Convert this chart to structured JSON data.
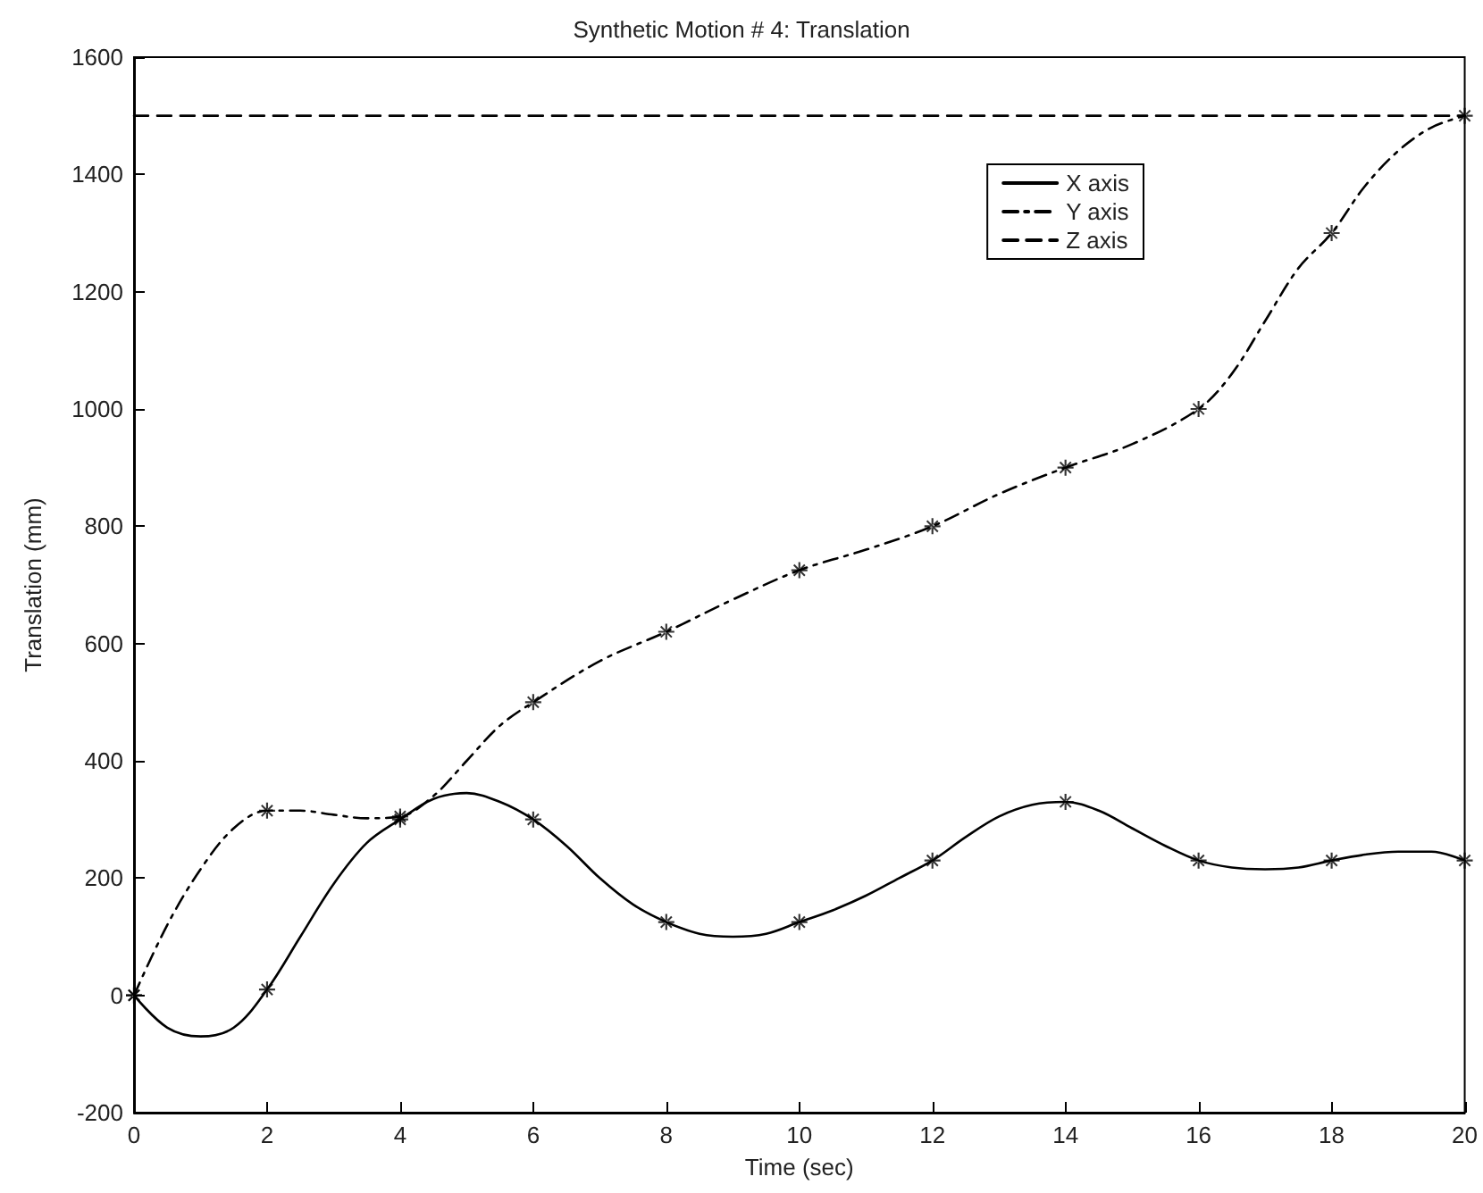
{
  "chart_data": {
    "type": "line",
    "title": "Synthetic Motion # 4: Translation",
    "xlabel": "Time (sec)",
    "ylabel": "Translation (mm)",
    "xlim": [
      0,
      20
    ],
    "xticks": [
      0,
      2,
      4,
      6,
      8,
      10,
      12,
      14,
      16,
      18,
      20
    ],
    "ylim": [
      -200,
      1600
    ],
    "yticks": [
      -200,
      0,
      200,
      400,
      600,
      800,
      1000,
      1200,
      1400,
      1600
    ],
    "grid": false,
    "legend": "top right",
    "series": [
      {
        "name": "X axis",
        "color": "#000000",
        "line_style": "solid",
        "marker": "none",
        "x": [
          0,
          0.5,
          1,
          1.5,
          2,
          2.5,
          3,
          3.5,
          4,
          4.5,
          5,
          5.5,
          6,
          6.5,
          7,
          7.5,
          8,
          8.5,
          9,
          9.5,
          10,
          10.5,
          11,
          11.5,
          12,
          12.5,
          13,
          13.5,
          14,
          14.5,
          15,
          15.5,
          16,
          16.5,
          17,
          17.5,
          18,
          18.5,
          19,
          19.5,
          20
        ],
        "values": [
          0,
          -55,
          -70,
          -55,
          10,
          100,
          190,
          260,
          300,
          335,
          345,
          330,
          300,
          255,
          200,
          155,
          125,
          105,
          100,
          105,
          125,
          145,
          170,
          200,
          230,
          270,
          305,
          325,
          330,
          315,
          285,
          255,
          230,
          218,
          215,
          218,
          230,
          240,
          245,
          245,
          230
        ]
      },
      {
        "name": "Y axis",
        "color": "#000000",
        "line_style": "dashdot",
        "marker": "none",
        "x": [
          0,
          0.5,
          1,
          1.5,
          2,
          2.5,
          3,
          3.5,
          4,
          4.5,
          5,
          5.5,
          6,
          7,
          8,
          9,
          10,
          11,
          12,
          13,
          14,
          15,
          16,
          16.5,
          17,
          17.5,
          18,
          18.5,
          19,
          19.5,
          20
        ],
        "values": [
          0,
          120,
          215,
          285,
          315,
          315,
          308,
          302,
          305,
          340,
          400,
          460,
          500,
          570,
          620,
          675,
          725,
          760,
          800,
          855,
          900,
          940,
          1000,
          1060,
          1150,
          1240,
          1300,
          1380,
          1440,
          1480,
          1500
        ]
      },
      {
        "name": "Z axis",
        "color": "#000000",
        "line_style": "dashed",
        "marker": "none",
        "x": [
          0,
          20
        ],
        "values": [
          1500,
          1500
        ]
      },
      {
        "type": "scatter",
        "color": "#000000",
        "marker": "star",
        "x": [
          0,
          2,
          4,
          6,
          8,
          10,
          12,
          14,
          16,
          18,
          20
        ],
        "values": [
          0,
          10,
          300,
          300,
          125,
          125,
          230,
          330,
          230,
          230,
          230
        ]
      },
      {
        "type": "scatter",
        "color": "#000000",
        "marker": "star",
        "x": [
          0,
          2,
          4,
          6,
          8,
          10,
          12,
          14,
          16,
          18,
          20
        ],
        "values": [
          0,
          315,
          305,
          500,
          620,
          725,
          800,
          900,
          1000,
          1300,
          1500
        ]
      }
    ]
  }
}
